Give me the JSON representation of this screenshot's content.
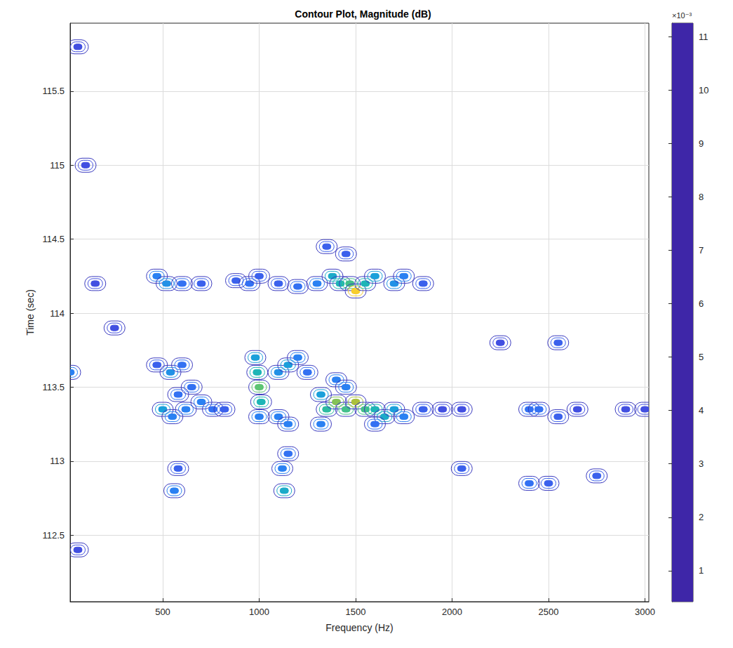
{
  "chart_data": {
    "type": "contour",
    "title": "Contour Plot, Magnitude (dB)",
    "x_label": "Frequency (Hz)",
    "y_label": "Time (sec)",
    "xlim": [
      20,
      3020
    ],
    "xticks": [
      500,
      1000,
      1500,
      2000,
      2500,
      3000
    ],
    "ylim": [
      112.05,
      115.96
    ],
    "yticks": [
      112.5,
      113,
      113.5,
      114,
      114.5,
      115,
      115.5
    ],
    "grid": true,
    "colorbar_title": "×10⁻³",
    "colorbar_lim": [
      0.00042,
      0.01125
    ],
    "colorbar_ticks": [
      {
        "value": 0.001,
        "label": "1"
      },
      {
        "value": 0.002,
        "label": "2"
      },
      {
        "value": 0.003,
        "label": "3"
      },
      {
        "value": 0.004,
        "label": "4"
      },
      {
        "value": 0.005,
        "label": "5"
      },
      {
        "value": 0.006,
        "label": "6"
      },
      {
        "value": 0.007,
        "label": "7"
      },
      {
        "value": 0.008,
        "label": "8"
      },
      {
        "value": 0.009,
        "label": "9"
      },
      {
        "value": 0.01,
        "label": "10"
      },
      {
        "value": 0.011,
        "label": "11"
      }
    ],
    "colors": [
      "#3e26a8",
      "#4254e8",
      "#2d7cf6",
      "#1aa1d9",
      "#1fbaae",
      "#58c475",
      "#b6c034",
      "#f3ba38",
      "#fadd25",
      "#f9fb14"
    ],
    "cells": [
      [
        470,
        114.25,
        0.003
      ],
      [
        520,
        114.2,
        0.0035
      ],
      [
        600,
        114.2,
        0.0025
      ],
      [
        700,
        114.2,
        0.002
      ],
      [
        880,
        114.22,
        0.002
      ],
      [
        950,
        114.2,
        0.0025
      ],
      [
        1000,
        114.25,
        0.002
      ],
      [
        1100,
        114.2,
        0.002
      ],
      [
        1200,
        114.18,
        0.0025
      ],
      [
        1300,
        114.2,
        0.003
      ],
      [
        1380,
        114.25,
        0.0045
      ],
      [
        1420,
        114.2,
        0.005
      ],
      [
        1470,
        114.2,
        0.006
      ],
      [
        1500,
        114.15,
        0.0095
      ],
      [
        1550,
        114.2,
        0.005
      ],
      [
        1600,
        114.25,
        0.004
      ],
      [
        1700,
        114.2,
        0.0035
      ],
      [
        1750,
        114.25,
        0.003
      ],
      [
        1850,
        114.2,
        0.002
      ],
      [
        1450,
        114.4,
        0.002
      ],
      [
        1350,
        114.45,
        0.002
      ],
      [
        470,
        113.65,
        0.002
      ],
      [
        540,
        113.6,
        0.0035
      ],
      [
        600,
        113.65,
        0.0025
      ],
      [
        500,
        113.35,
        0.004
      ],
      [
        550,
        113.3,
        0.003
      ],
      [
        620,
        113.35,
        0.003
      ],
      [
        700,
        113.4,
        0.003
      ],
      [
        760,
        113.35,
        0.0025
      ],
      [
        820,
        113.35,
        0.002
      ],
      [
        580,
        113.45,
        0.0025
      ],
      [
        650,
        113.5,
        0.0025
      ],
      [
        980,
        113.7,
        0.004
      ],
      [
        990,
        113.6,
        0.005
      ],
      [
        1000,
        113.5,
        0.0065
      ],
      [
        1010,
        113.4,
        0.005
      ],
      [
        1000,
        113.3,
        0.003
      ],
      [
        1100,
        113.6,
        0.0035
      ],
      [
        1150,
        113.65,
        0.004
      ],
      [
        1200,
        113.7,
        0.003
      ],
      [
        1250,
        113.6,
        0.0025
      ],
      [
        1100,
        113.3,
        0.003
      ],
      [
        1150,
        113.25,
        0.003
      ],
      [
        1320,
        113.45,
        0.004
      ],
      [
        1350,
        113.35,
        0.0055
      ],
      [
        1400,
        113.4,
        0.007
      ],
      [
        1450,
        113.35,
        0.006
      ],
      [
        1500,
        113.4,
        0.0075
      ],
      [
        1550,
        113.35,
        0.006
      ],
      [
        1600,
        113.35,
        0.005
      ],
      [
        1650,
        113.3,
        0.0045
      ],
      [
        1700,
        113.35,
        0.004
      ],
      [
        1750,
        113.3,
        0.003
      ],
      [
        1850,
        113.35,
        0.002
      ],
      [
        1950,
        113.35,
        0.0015
      ],
      [
        2050,
        113.35,
        0.0015
      ],
      [
        2400,
        113.35,
        0.0025
      ],
      [
        2450,
        113.35,
        0.0025
      ],
      [
        2550,
        113.3,
        0.002
      ],
      [
        2650,
        113.35,
        0.0015
      ],
      [
        2900,
        113.35,
        0.0015
      ],
      [
        3000,
        113.35,
        0.0015
      ],
      [
        1400,
        113.55,
        0.003
      ],
      [
        1450,
        113.5,
        0.003
      ],
      [
        1320,
        113.25,
        0.003
      ],
      [
        1600,
        113.25,
        0.0025
      ],
      [
        1130,
        112.8,
        0.0045
      ],
      [
        1120,
        112.95,
        0.003
      ],
      [
        1150,
        113.05,
        0.0025
      ],
      [
        560,
        112.8,
        0.003
      ],
      [
        580,
        112.95,
        0.002
      ],
      [
        2050,
        112.95,
        0.002
      ],
      [
        2400,
        112.85,
        0.0025
      ],
      [
        2500,
        112.85,
        0.002
      ],
      [
        2750,
        112.9,
        0.002
      ],
      [
        20,
        113.6,
        0.003
      ],
      [
        2550,
        113.8,
        0.002
      ],
      [
        2250,
        113.8,
        0.0015
      ],
      [
        60,
        115.8,
        0.0015
      ],
      [
        100,
        115.0,
        0.0015
      ],
      [
        60,
        112.4,
        0.0015
      ],
      [
        150,
        114.2,
        0.0015
      ],
      [
        250,
        113.9,
        0.0015
      ]
    ]
  }
}
